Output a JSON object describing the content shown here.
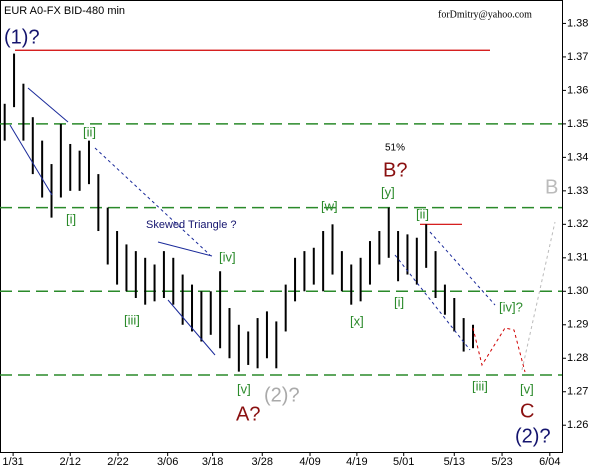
{
  "chart_data": {
    "type": "ohlc-range",
    "title": "EUR A0-FX BID-480 min",
    "subtitle": "forDmitry@yahoo.com",
    "color": "#000000",
    "x": [
      0,
      1,
      2,
      3,
      4,
      5,
      6,
      7,
      8,
      9,
      10,
      11,
      12,
      13,
      14,
      15,
      16,
      17,
      18,
      19,
      20,
      21,
      22,
      23,
      24,
      25,
      26,
      27,
      28,
      29,
      30,
      31,
      32,
      33,
      34,
      35,
      36,
      37,
      38,
      39,
      40,
      41,
      42,
      43,
      44,
      45,
      46,
      47,
      48,
      49,
      50
    ],
    "high": [
      1.356,
      1.371,
      1.362,
      1.352,
      1.345,
      1.338,
      1.35,
      1.344,
      1.342,
      1.345,
      1.335,
      1.325,
      1.318,
      1.314,
      1.312,
      1.31,
      1.308,
      1.312,
      1.31,
      1.305,
      1.302,
      1.3,
      1.3,
      1.306,
      1.295,
      1.29,
      1.288,
      1.292,
      1.294,
      1.291,
      1.302,
      1.31,
      1.312,
      1.313,
      1.318,
      1.32,
      1.312,
      1.308,
      1.31,
      1.315,
      1.318,
      1.325,
      1.318,
      1.317,
      1.316,
      1.32,
      1.312,
      1.302,
      1.298,
      1.292,
      1.29
    ],
    "low": [
      1.345,
      1.355,
      1.345,
      1.335,
      1.328,
      1.322,
      1.328,
      1.33,
      1.33,
      1.332,
      1.318,
      1.308,
      1.302,
      1.3,
      1.298,
      1.296,
      1.297,
      1.298,
      1.296,
      1.29,
      1.288,
      1.285,
      1.287,
      1.283,
      1.28,
      1.276,
      1.278,
      1.277,
      1.28,
      1.277,
      1.288,
      1.297,
      1.3,
      1.302,
      1.3,
      1.305,
      1.3,
      1.296,
      1.297,
      1.302,
      1.308,
      1.31,
      1.303,
      1.305,
      1.302,
      1.307,
      1.298,
      1.293,
      1.288,
      1.282,
      1.283
    ],
    "xlim": [
      -0.5,
      59.5
    ],
    "xticks": [
      {
        "value": 0.9,
        "label": "1/31"
      },
      {
        "value": 7.0,
        "label": "2/12"
      },
      {
        "value": 12.1,
        "label": "2/22"
      },
      {
        "value": 17.4,
        "label": "3/06"
      },
      {
        "value": 22.2,
        "label": "3/18"
      },
      {
        "value": 27.5,
        "label": "3/28"
      },
      {
        "value": 32.6,
        "label": "4/09"
      },
      {
        "value": 37.6,
        "label": "4/19"
      },
      {
        "value": 42.6,
        "label": "5/01"
      },
      {
        "value": 48.0,
        "label": "5/13"
      },
      {
        "value": 53.1,
        "label": "5/23"
      },
      {
        "value": 58.2,
        "label": "6/04"
      }
    ],
    "ylim": [
      1.252,
      1.387
    ],
    "yticks": [
      1.26,
      1.27,
      1.28,
      1.29,
      {
        "value": 1.3,
        "label": "1.30"
      },
      1.31,
      1.32,
      1.33,
      1.34,
      1.35,
      1.36,
      1.37,
      1.38
    ],
    "levels": [
      {
        "value": 1.372,
        "color": "#d00000"
      },
      {
        "value": 1.35,
        "color": "#2a8a2a"
      },
      {
        "value": 1.325,
        "color": "#2a8a2a"
      },
      {
        "value": 1.3,
        "color": "#2a8a2a"
      },
      {
        "value": 1.275,
        "color": "#2a8a2a"
      },
      {
        "value": 1.32,
        "color": "#d00000"
      }
    ],
    "annotations": [
      "(1)?",
      "[ii]",
      "[i]",
      "Skewed Triangle ?",
      "[iv]",
      "[iii]",
      "[v]",
      "A?",
      "(2)?",
      "[w]",
      "[x]",
      "[y]",
      "51%",
      "B?",
      "[ii]",
      "[i]",
      "[iv]?",
      "[iii]",
      "[v]",
      "B",
      "C",
      "(2)?"
    ]
  }
}
